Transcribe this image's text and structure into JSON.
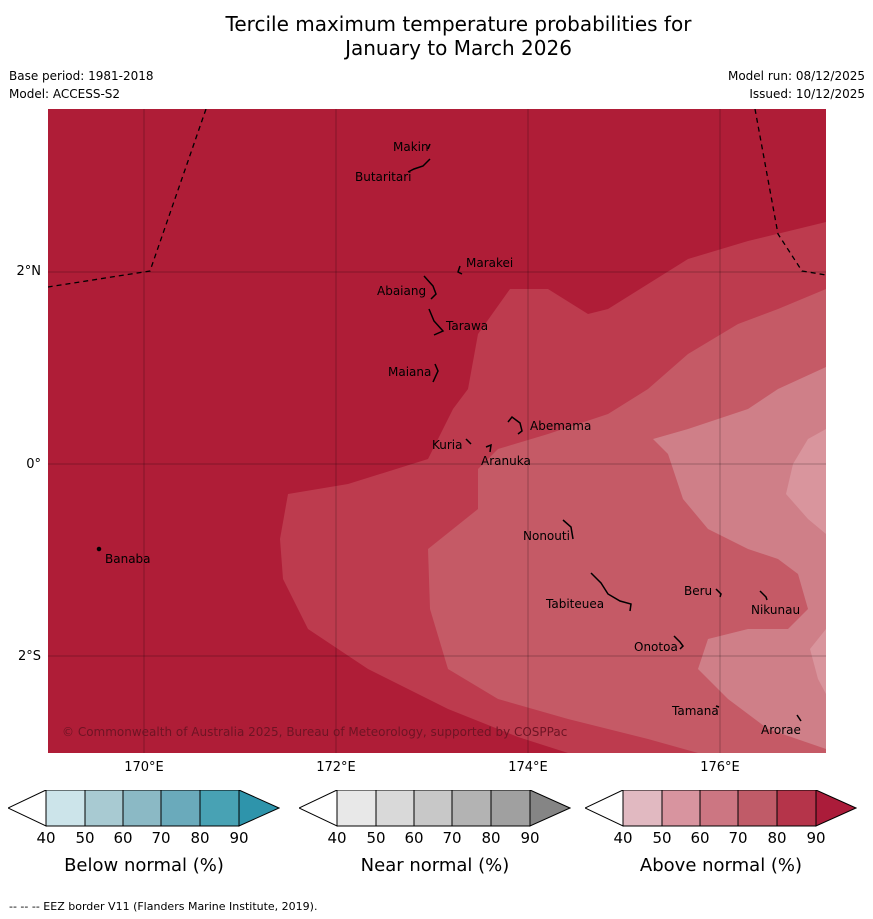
{
  "title_line1": "Tercile maximum temperature probabilities for",
  "title_line2": "January to March 2026",
  "base_period": "Base period: 1981-2018",
  "model": "Model: ACCESS-S2",
  "model_run": "Model run: 08/12/2025",
  "issued": "Issued: 10/12/2025",
  "copyright": "© Commonwealth of Australia 2025, Bureau of Meteorology, supported by COSPPac",
  "lat_labels": [
    "2°N",
    "0°",
    "2°S"
  ],
  "lon_labels": [
    "170°E",
    "172°E",
    "174°E",
    "176°E"
  ],
  "islands": {
    "makin": "Makin",
    "butaritari": "Butaritari",
    "marakei": "Marakei",
    "abaiang": "Abaiang",
    "tarawa": "Tarawa",
    "maiana": "Maiana",
    "abemama": "Abemama",
    "kuria": "Kuria",
    "aranuka": "Aranuka",
    "banaba": "Banaba",
    "nonouti": "Nonouti",
    "tabiteuea": "Tabiteuea",
    "beru": "Beru",
    "nikunau": "Nikunau",
    "onotoa": "Onotoa",
    "tamana": "Tamana",
    "arorae": "Arorae"
  },
  "colorbars": {
    "below": {
      "label": "Below normal (%)",
      "colors": [
        "#ffffff",
        "#cce4ea",
        "#a8cad2",
        "#8bb9c5",
        "#6aaabb",
        "#48a2b4",
        "#2e94ab"
      ]
    },
    "near": {
      "label": "Near normal (%)",
      "colors": [
        "#ffffff",
        "#e8e8e8",
        "#d9d9d9",
        "#c8c8c8",
        "#b3b3b3",
        "#a0a0a0",
        "#858585"
      ]
    },
    "above": {
      "label": "Above normal (%)",
      "colors": [
        "#ffffff",
        "#e1b9c1",
        "#d8949f",
        "#cc7682",
        "#c05b68",
        "#b5344a",
        "#ab1c3a"
      ]
    },
    "ticks": [
      "40",
      "50",
      "60",
      "70",
      "80",
      "90"
    ]
  },
  "map_colors": {
    "p90": "#af1d37",
    "p80": "#bd3b4e",
    "p70": "#c55a66",
    "p60": "#cf7f88",
    "p50": "#d9959d"
  },
  "footer": "--  --  -- EEZ border V11 (Flanders Marine Institute, 2019)."
}
